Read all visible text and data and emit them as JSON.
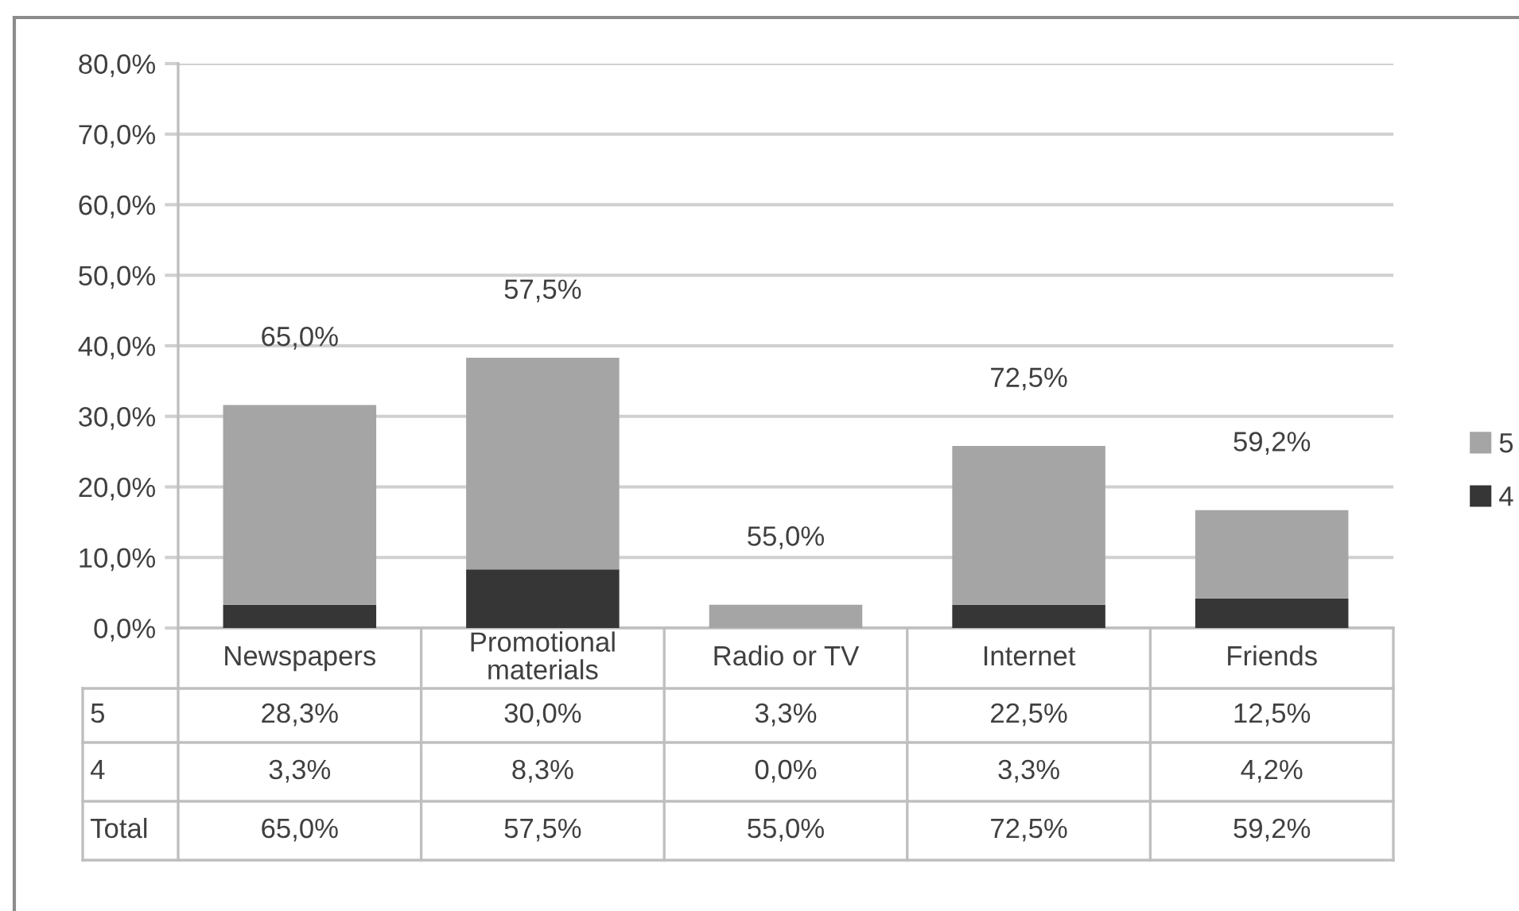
{
  "chart_data": {
    "type": "bar",
    "stacked": true,
    "categories": [
      "Newspapers",
      "Promotional materials",
      "Radio or TV",
      "Internet",
      "Friends"
    ],
    "series": [
      {
        "name": "4",
        "color": "#363636",
        "values": [
          3.3,
          8.3,
          0.0,
          3.3,
          4.2
        ],
        "value_labels": [
          "3,3%",
          "8,3%",
          "0,0%",
          "3,3%",
          "4,2%"
        ]
      },
      {
        "name": "5",
        "color": "#a5a5a5",
        "values": [
          28.3,
          30.0,
          3.3,
          22.5,
          12.5
        ],
        "value_labels": [
          "28,3%",
          "30,0%",
          "3,3%",
          "22,5%",
          "12,5%"
        ]
      }
    ],
    "annotations": [
      "Total",
      "65,0%",
      "57,5%",
      "55,0%",
      "72,5%",
      "59,2%"
    ],
    "ylim": [
      0,
      80
    ],
    "yticks": [
      {
        "value": 0,
        "label": "0,0%"
      },
      {
        "value": 10,
        "label": "10,0%"
      },
      {
        "value": 20,
        "label": "20,0%"
      },
      {
        "value": 30,
        "label": "30,0%"
      },
      {
        "value": 40,
        "label": "40,0%"
      },
      {
        "value": 50,
        "label": "50,0%"
      },
      {
        "value": 60,
        "label": "60,0%"
      },
      {
        "value": 70,
        "label": "70,0%"
      },
      {
        "value": 80,
        "label": "80,0%"
      }
    ],
    "grid": "y",
    "legend": "right"
  }
}
